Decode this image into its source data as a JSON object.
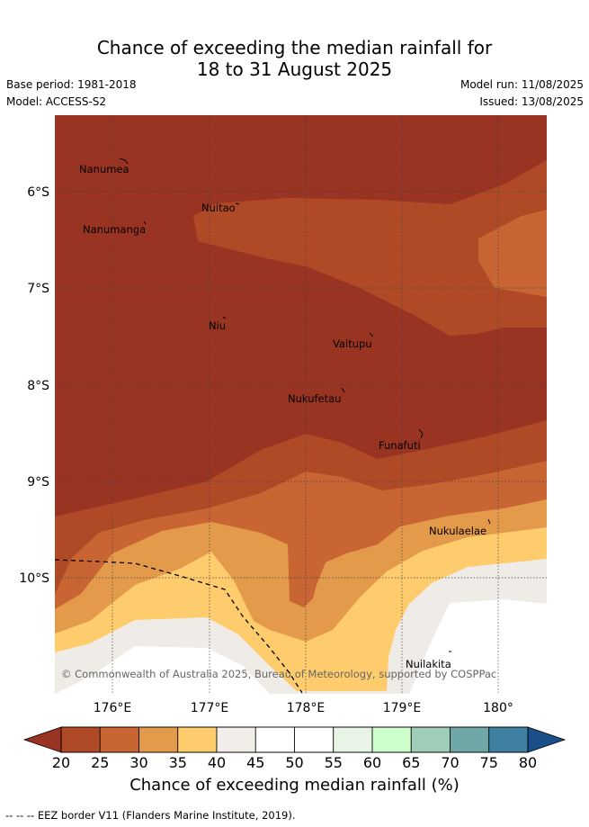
{
  "title": {
    "line1": "Chance of exceeding the median rainfall for",
    "line2": "18 to 31 August 2025"
  },
  "meta": {
    "base_period": "Base period: 1981-2018",
    "model": "Model: ACCESS-S2",
    "model_run": "Model run: 11/08/2025",
    "issued": "Issued: 13/08/2025"
  },
  "map": {
    "lat_labels": [
      "6°S",
      "7°S",
      "8°S",
      "9°S",
      "10°S"
    ],
    "lon_labels": [
      "176°E",
      "177°E",
      "178°E",
      "179°E",
      "180°"
    ],
    "places": [
      "Nanumea",
      "Nuitao",
      "Nanumanga",
      "Niu",
      "Vaitupu",
      "Nukufetau",
      "Funafuti",
      "Nukulaelae",
      "Nuilakita"
    ],
    "copyright": "© Commonwealth of Australia 2025, Bureau of Meteorology, supported by COSPPac",
    "colors": {
      "c20": "#993322",
      "c25": "#b04a26",
      "c30": "#c96533",
      "c35": "#e49a4b",
      "c40": "#fecc6c",
      "c45": "#efebe6"
    }
  },
  "colorbar": {
    "ticks": [
      "20",
      "25",
      "30",
      "35",
      "40",
      "45",
      "50",
      "55",
      "60",
      "65",
      "70",
      "75",
      "80"
    ],
    "colors": [
      "#b04a26",
      "#c96533",
      "#e49a4b",
      "#fecc6c",
      "#f1ede8",
      "#ffffff",
      "#ffffff",
      "#e8f5e6",
      "#ccffcc",
      "#9ecdb9",
      "#6ea7a5",
      "#3f7f9f"
    ],
    "under_color": "#993322",
    "over_color": "#1a4f8a",
    "label": "Chance of exceeding median rainfall (%)"
  },
  "footer": {
    "eez_legend": "--  --  -- EEZ border V11 (Flanders Marine Institute, 2019)."
  }
}
